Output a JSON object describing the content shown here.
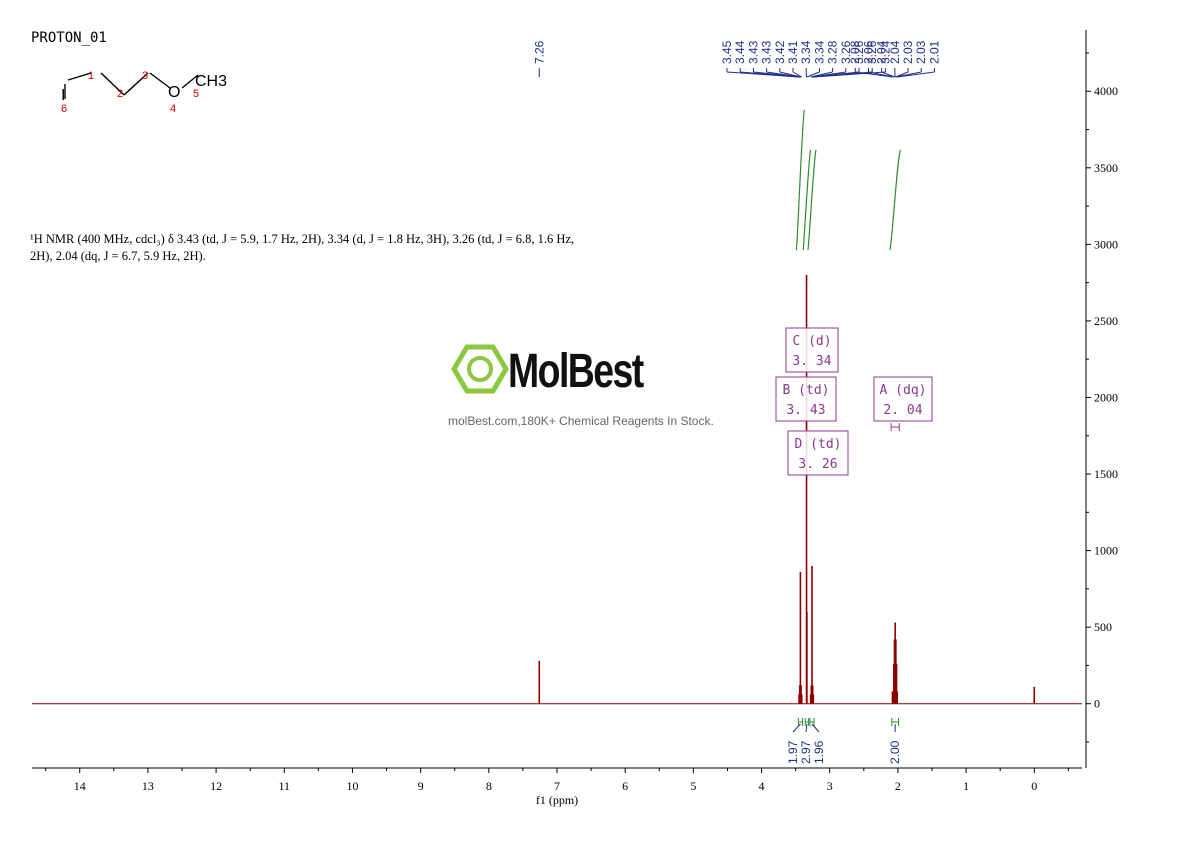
{
  "sample_name": "PROTON_01",
  "structure": {
    "atom_numbers": [
      "1",
      "2",
      "3",
      "4",
      "5",
      "6"
    ],
    "atoms": {
      "iodine": "I",
      "oxygen": "O",
      "methyl": "CH3"
    }
  },
  "nmr_description": "¹H NMR (400 MHz, cdcl₃) δ 3.43 (td, J = 5.9, 1.7 Hz, 2H), 3.34 (d, J = 1.8 Hz, 3H), 3.26 (td, J = 6.8, 1.6 Hz, 2H), 2.04 (dq, J = 6.7, 5.9 Hz, 2H).",
  "watermark": {
    "brand": "MolBest",
    "tagline": "molBest.com,180K+ Chemical Reagents In Stock."
  },
  "colors": {
    "spectrum": "#8b0000",
    "peak_labels": "#1f2f86",
    "integrals": "#2e8b2e",
    "multiplet_boxes": "#8b3a8b",
    "logo_green": "#8dc63f"
  },
  "chart_data": {
    "type": "line",
    "xlabel": "f1 (ppm)",
    "ylabel": "",
    "xlim": [
      14.7,
      -0.7
    ],
    "ylim": [
      -420,
      4400
    ],
    "x_ticks": [
      14,
      13,
      12,
      11,
      10,
      9,
      8,
      7,
      6,
      5,
      4,
      3,
      2,
      1,
      0
    ],
    "y_ticks": [
      0,
      500,
      1000,
      1500,
      2000,
      2500,
      3000,
      3500,
      4000
    ],
    "peaks": [
      {
        "ppm": 7.26,
        "height": 280
      },
      {
        "ppm": 3.45,
        "height": 60
      },
      {
        "ppm": 3.44,
        "height": 120
      },
      {
        "ppm": 3.43,
        "height": 860
      },
      {
        "ppm": 3.42,
        "height": 120
      },
      {
        "ppm": 3.41,
        "height": 60
      },
      {
        "ppm": 3.34,
        "height": 2800
      },
      {
        "ppm": 3.335,
        "height": 600
      },
      {
        "ppm": 3.28,
        "height": 60
      },
      {
        "ppm": 3.27,
        "height": 120
      },
      {
        "ppm": 3.26,
        "height": 900
      },
      {
        "ppm": 3.25,
        "height": 120
      },
      {
        "ppm": 3.24,
        "height": 60
      },
      {
        "ppm": 2.08,
        "height": 80
      },
      {
        "ppm": 2.06,
        "height": 260
      },
      {
        "ppm": 2.05,
        "height": 420
      },
      {
        "ppm": 2.04,
        "height": 530
      },
      {
        "ppm": 2.03,
        "height": 420
      },
      {
        "ppm": 2.02,
        "height": 260
      },
      {
        "ppm": 2.01,
        "height": 80
      },
      {
        "ppm": 0.0,
        "height": 110
      }
    ],
    "peak_label_groups": [
      {
        "labels": [
          "7.26"
        ],
        "ppm": [
          7.26
        ]
      },
      {
        "labels": [
          "3.45",
          "3.44",
          "3.43",
          "3.43",
          "3.42",
          "3.41",
          "3.34",
          "3.34",
          "3.28",
          "3.26",
          "3.26",
          "3.26",
          "3.24"
        ],
        "ppm": [
          3.45,
          3.44,
          3.43,
          3.43,
          3.42,
          3.41,
          3.34,
          3.335,
          3.28,
          3.265,
          3.26,
          3.255,
          3.24
        ]
      },
      {
        "labels": [
          "2.08",
          "2.06",
          "2.04",
          "2.04",
          "2.03",
          "2.03",
          "2.01"
        ],
        "ppm": [
          2.08,
          2.06,
          2.045,
          2.04,
          2.035,
          2.03,
          2.01
        ]
      }
    ],
    "multiplets": [
      {
        "letter": "A",
        "type": "dq",
        "shift": "2. 04",
        "ppm": 2.04
      },
      {
        "letter": "B",
        "type": "td",
        "shift": "3. 43",
        "ppm": 3.43
      },
      {
        "letter": "C",
        "type": "d",
        "shift": "3. 34",
        "ppm": 3.34
      },
      {
        "letter": "D",
        "type": "td",
        "shift": "3. 26",
        "ppm": 3.26
      }
    ],
    "integrals": [
      {
        "label": "1.97",
        "from": 3.46,
        "to": 3.4
      },
      {
        "label": "2.97",
        "from": 3.36,
        "to": 3.31
      },
      {
        "label": "1.96",
        "from": 3.29,
        "to": 3.23
      },
      {
        "label": "2.00",
        "from": 2.09,
        "to": 1.99
      }
    ]
  }
}
